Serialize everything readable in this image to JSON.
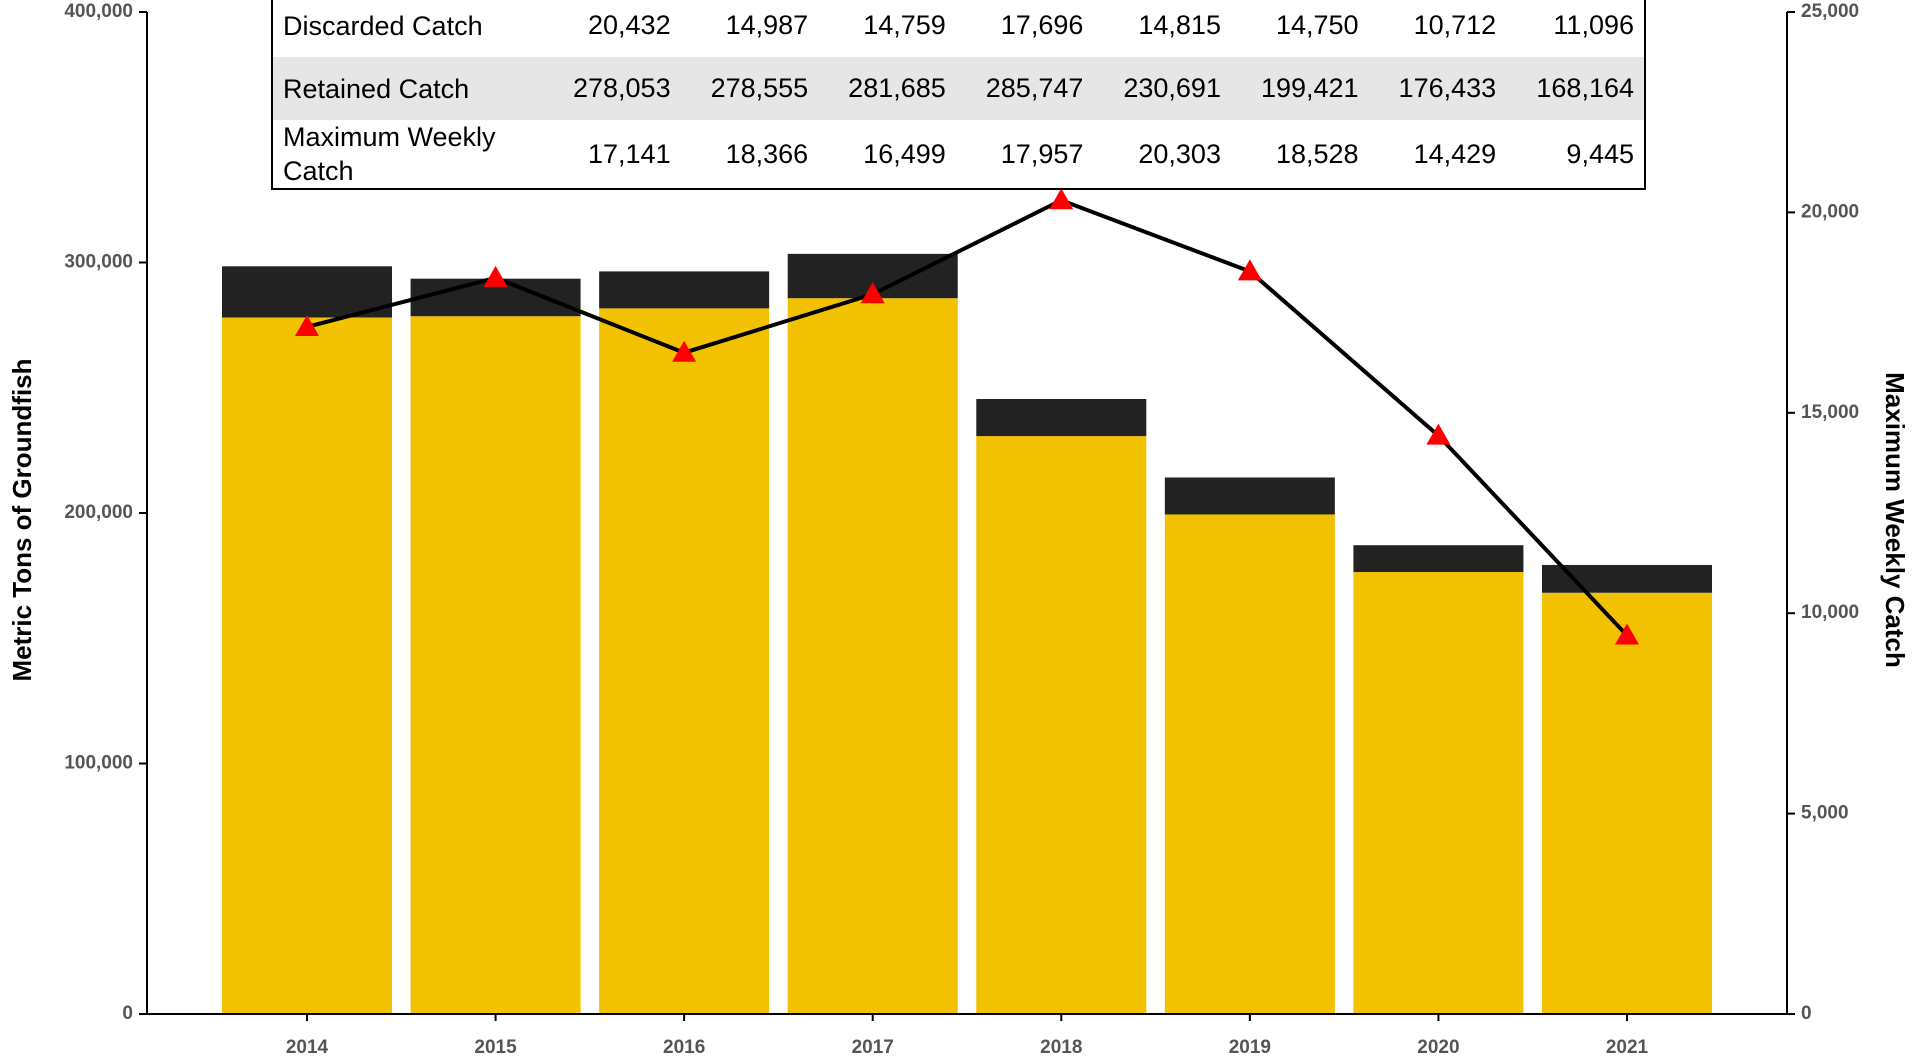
{
  "chart_data": {
    "type": "bar",
    "stacked": true,
    "categories": [
      "2014",
      "2015",
      "2016",
      "2017",
      "2018",
      "2019",
      "2020",
      "2021"
    ],
    "series": [
      {
        "name": "Retained Catch",
        "color": "#f2c200",
        "type": "bar",
        "values": [
          278053,
          278555,
          281685,
          285747,
          230691,
          199421,
          176433,
          168164
        ],
        "value_labels": [
          "278,053",
          "278,555",
          "281,685",
          "285,747",
          "230,691",
          "199,421",
          "176,433",
          "168,164"
        ]
      },
      {
        "name": "Discarded Catch",
        "color": "#222222",
        "type": "bar",
        "values": [
          20432,
          14987,
          14759,
          17696,
          14815,
          14750,
          10712,
          11096
        ],
        "value_labels": [
          "20,432",
          "14,987",
          "14,759",
          "17,696",
          "14,815",
          "14,750",
          "10,712",
          "11,096"
        ]
      },
      {
        "name": "Maximum Weekly Catch",
        "color": "#000000",
        "marker_color": "#ff0000",
        "type": "line",
        "axis": "y2",
        "values": [
          17141,
          18366,
          16499,
          17957,
          20303,
          18528,
          14429,
          9445
        ],
        "value_labels": [
          "17,141",
          "18,366",
          "16,499",
          "17,957",
          "20,303",
          "18,528",
          "14,429",
          "9,445"
        ]
      }
    ],
    "table_rows": [
      1,
      0,
      2
    ],
    "ylabel": "Metric Tons of Groundfish",
    "y2label": "Maximum Weekly Catch",
    "ylim": [
      0,
      400000
    ],
    "yticks": [
      0,
      {
        "value": 100000,
        "label": "100,000"
      },
      {
        "value": 200000,
        "label": "200,000"
      },
      {
        "value": 300000,
        "label": "300,000"
      },
      {
        "value": 400000,
        "label": "400,000"
      }
    ],
    "y2lim": [
      0,
      25000
    ],
    "y2ticks": [
      0,
      {
        "value": 5000,
        "label": "5,000"
      },
      {
        "value": 10000,
        "label": "10,000"
      },
      {
        "value": 15000,
        "label": "15,000"
      },
      {
        "value": 20000,
        "label": "20,000"
      },
      {
        "value": 25000,
        "label": "25,000"
      }
    ]
  }
}
